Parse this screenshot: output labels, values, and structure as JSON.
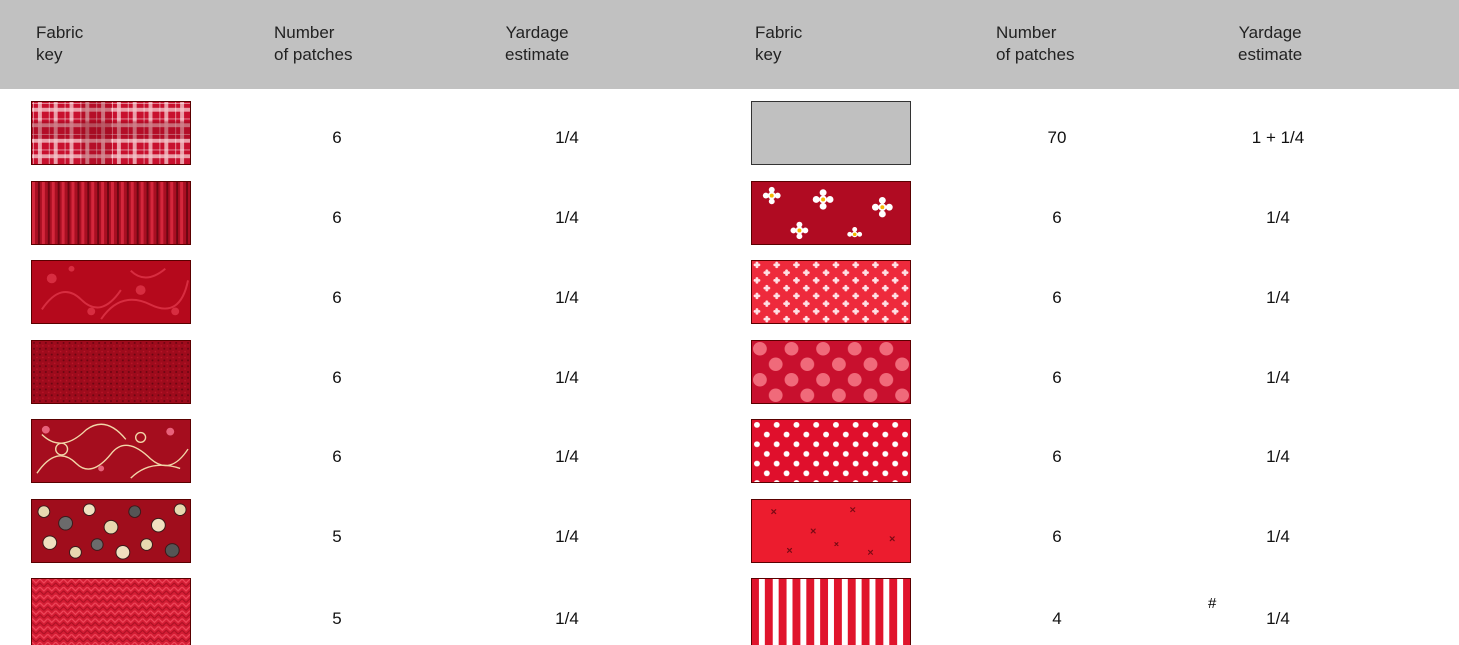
{
  "headers": {
    "left": {
      "fabric_key": "Fabric\nkey",
      "patches": "Number\nof patches",
      "yardage": "Yardage\nestimate"
    },
    "right": {
      "fabric_key": "Fabric\nkey",
      "patches": "Number\nof patches",
      "yardage": "Yardage\nestimate"
    }
  },
  "left_rows": [
    {
      "swatch": "red-plaid",
      "patches": "6",
      "yardage": "1/4"
    },
    {
      "swatch": "red-stripe",
      "patches": "6",
      "yardage": "1/4"
    },
    {
      "swatch": "red-floral-vine",
      "patches": "6",
      "yardage": "1/4"
    },
    {
      "swatch": "dark-red-textured",
      "patches": "6",
      "yardage": "1/4"
    },
    {
      "swatch": "red-scroll-hearts",
      "patches": "6",
      "yardage": "1/4"
    },
    {
      "swatch": "red-buttons",
      "patches": "5",
      "yardage": "1/4"
    },
    {
      "swatch": "red-knit",
      "patches": "5",
      "yardage": "1/4"
    }
  ],
  "right_rows": [
    {
      "swatch": "gray-solid",
      "patches": "70",
      "yardage": "1 + 1/4"
    },
    {
      "swatch": "red-white-flowers",
      "patches": "6",
      "yardage": "1/4"
    },
    {
      "swatch": "red-small-flowers",
      "patches": "6",
      "yardage": "1/4"
    },
    {
      "swatch": "red-pink-dots",
      "patches": "6",
      "yardage": "1/4"
    },
    {
      "swatch": "red-white-dots",
      "patches": "6",
      "yardage": "1/4"
    },
    {
      "swatch": "red-crosses",
      "patches": "6",
      "yardage": "1/4"
    },
    {
      "swatch": "red-white-stripe",
      "patches": "4",
      "yardage": "1/4",
      "note": "#"
    }
  ],
  "colors": {
    "header_bg": "#c1c1c1",
    "fabric_red": "#c8102e",
    "fabric_dark_red": "#9e0b1c",
    "gray_fabric": "#c0c0c0"
  }
}
